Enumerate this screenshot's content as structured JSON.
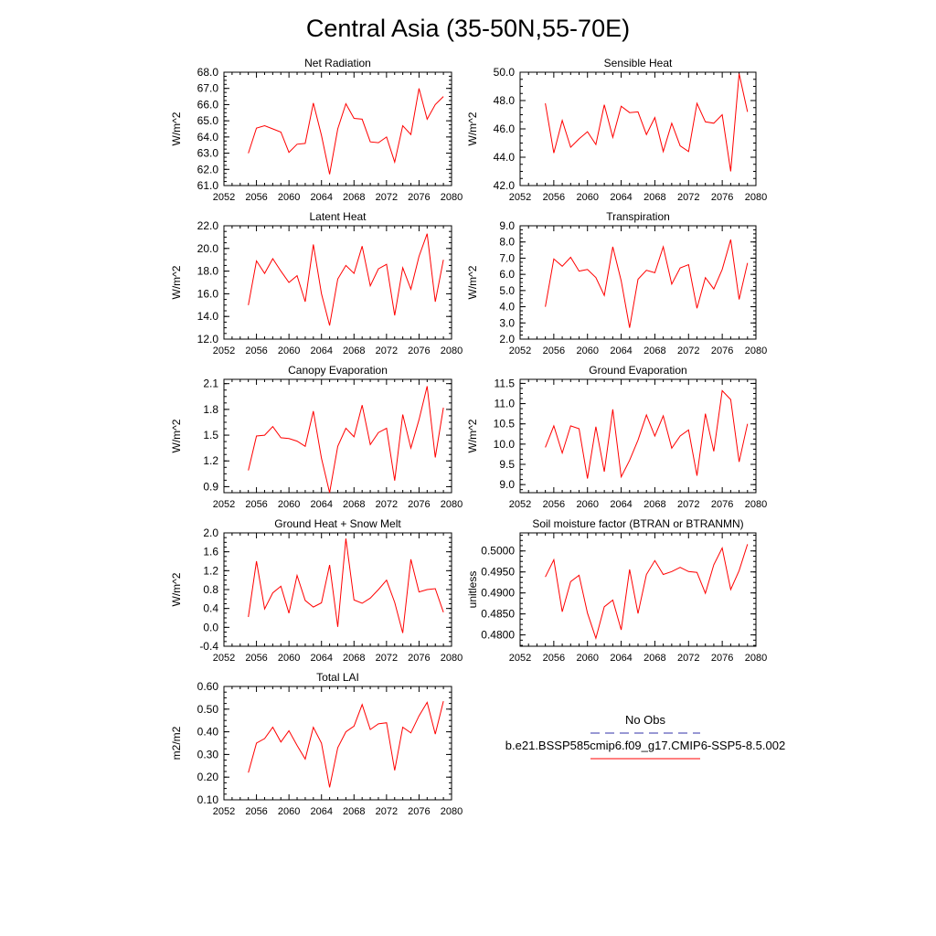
{
  "figure": {
    "title": "Central Asia (35-50N,55-70E)"
  },
  "legend": {
    "obs_label": "No Obs",
    "model_label": "b.e21.BSSP585cmip6.f09_g17.CMIP6-SSP5-8.5.002",
    "obs_color": "#3333aa",
    "model_color": "#ff0000"
  },
  "chart_data": [
    {
      "type": "line",
      "title": "Net Radiation",
      "ylabel": "W/m^2",
      "xlim": [
        2052,
        2080
      ],
      "ylim": [
        61.0,
        68.0
      ],
      "xticks": [
        "2052",
        "2056",
        "2060",
        "2064",
        "2068",
        "2072",
        "2076",
        "2080"
      ],
      "yticks": [
        "61.0",
        "62.0",
        "63.0",
        "64.0",
        "65.0",
        "66.0",
        "67.0",
        "68.0"
      ],
      "ytick_values": [
        61,
        62,
        63,
        64,
        65,
        66,
        67,
        68
      ],
      "series": [
        {
          "name": "b.e21.BSSP585cmip6.f09_g17.CMIP6-SSP5-8.5.002",
          "color": "#ff0000",
          "x": [
            2055,
            2056,
            2057,
            2058,
            2059,
            2060,
            2061,
            2062,
            2063,
            2064,
            2065,
            2066,
            2067,
            2068,
            2069,
            2070,
            2071,
            2072,
            2073,
            2074,
            2075,
            2076,
            2077,
            2078,
            2079
          ],
          "y": [
            63.0,
            64.55,
            64.7,
            64.5,
            64.3,
            63.05,
            63.55,
            63.6,
            66.1,
            64.1,
            61.7,
            64.5,
            66.05,
            65.15,
            65.1,
            63.7,
            63.65,
            64.0,
            62.45,
            64.7,
            64.15,
            67.0,
            65.1,
            66.0,
            66.5
          ]
        }
      ]
    },
    {
      "type": "line",
      "title": "Sensible Heat",
      "ylabel": "W/m^2",
      "xlim": [
        2052,
        2080
      ],
      "ylim": [
        42.0,
        50.0
      ],
      "xticks": [
        "2052",
        "2056",
        "2060",
        "2064",
        "2068",
        "2072",
        "2076",
        "2080"
      ],
      "yticks": [
        "42.0",
        "44.0",
        "46.0",
        "48.0",
        "50.0"
      ],
      "ytick_values": [
        42,
        44,
        46,
        48,
        50
      ],
      "series": [
        {
          "name": "b.e21.BSSP585cmip6.f09_g17.CMIP6-SSP5-8.5.002",
          "color": "#ff0000",
          "x": [
            2055,
            2056,
            2057,
            2058,
            2059,
            2060,
            2061,
            2062,
            2063,
            2064,
            2065,
            2066,
            2067,
            2068,
            2069,
            2070,
            2071,
            2072,
            2073,
            2074,
            2075,
            2076,
            2077,
            2078,
            2079
          ],
          "y": [
            47.8,
            44.3,
            46.6,
            44.7,
            45.3,
            45.8,
            44.9,
            47.7,
            45.4,
            47.6,
            47.15,
            47.2,
            45.6,
            46.8,
            44.4,
            46.4,
            44.8,
            44.4,
            47.8,
            46.5,
            46.4,
            47.0,
            43.0,
            49.9,
            47.2
          ]
        }
      ]
    },
    {
      "type": "line",
      "title": "Latent Heat",
      "ylabel": "W/m^2",
      "xlim": [
        2052,
        2080
      ],
      "ylim": [
        12.0,
        22.0
      ],
      "xticks": [
        "2052",
        "2056",
        "2060",
        "2064",
        "2068",
        "2072",
        "2076",
        "2080"
      ],
      "yticks": [
        "12.0",
        "14.0",
        "16.0",
        "18.0",
        "20.0",
        "22.0"
      ],
      "ytick_values": [
        12,
        14,
        16,
        18,
        20,
        22
      ],
      "series": [
        {
          "name": "b.e21.BSSP585cmip6.f09_g17.CMIP6-SSP5-8.5.002",
          "color": "#ff0000",
          "x": [
            2055,
            2056,
            2057,
            2058,
            2059,
            2060,
            2061,
            2062,
            2063,
            2064,
            2065,
            2066,
            2067,
            2068,
            2069,
            2070,
            2071,
            2072,
            2073,
            2074,
            2075,
            2076,
            2077,
            2078,
            2079
          ],
          "y": [
            15.0,
            18.9,
            17.8,
            19.1,
            18.0,
            17.0,
            17.6,
            15.3,
            20.35,
            16.0,
            13.2,
            17.3,
            18.5,
            17.8,
            20.2,
            16.7,
            18.2,
            18.6,
            14.1,
            18.3,
            16.4,
            19.3,
            21.3,
            15.3,
            19.0
          ]
        }
      ]
    },
    {
      "type": "line",
      "title": "Transpiration",
      "ylabel": "W/m^2",
      "xlim": [
        2052,
        2080
      ],
      "ylim": [
        2.0,
        9.0
      ],
      "xticks": [
        "2052",
        "2056",
        "2060",
        "2064",
        "2068",
        "2072",
        "2076",
        "2080"
      ],
      "yticks": [
        "2.0",
        "3.0",
        "4.0",
        "5.0",
        "6.0",
        "7.0",
        "8.0",
        "9.0"
      ],
      "ytick_values": [
        2,
        3,
        4,
        5,
        6,
        7,
        8,
        9
      ],
      "series": [
        {
          "name": "b.e21.BSSP585cmip6.f09_g17.CMIP6-SSP5-8.5.002",
          "color": "#ff0000",
          "x": [
            2055,
            2056,
            2057,
            2058,
            2059,
            2060,
            2061,
            2062,
            2063,
            2064,
            2065,
            2066,
            2067,
            2068,
            2069,
            2070,
            2071,
            2072,
            2073,
            2074,
            2075,
            2076,
            2077,
            2078,
            2079
          ],
          "y": [
            4.0,
            6.95,
            6.5,
            7.05,
            6.2,
            6.3,
            5.8,
            4.7,
            7.7,
            5.6,
            2.7,
            5.7,
            6.25,
            6.1,
            7.7,
            5.4,
            6.4,
            6.6,
            3.9,
            5.8,
            5.1,
            6.3,
            8.15,
            4.45,
            6.7
          ]
        }
      ]
    },
    {
      "type": "line",
      "title": "Canopy Evaporation",
      "ylabel": "W/m^2",
      "xlim": [
        2052,
        2080
      ],
      "ylim": [
        0.83,
        2.15
      ],
      "xticks": [
        "2052",
        "2056",
        "2060",
        "2064",
        "2068",
        "2072",
        "2076",
        "2080"
      ],
      "yticks": [
        "0.9",
        "1.2",
        "1.5",
        "1.8",
        "2.1"
      ],
      "ytick_values": [
        0.9,
        1.2,
        1.5,
        1.8,
        2.1
      ],
      "series": [
        {
          "name": "b.e21.BSSP585cmip6.f09_g17.CMIP6-SSP5-8.5.002",
          "color": "#ff0000",
          "x": [
            2055,
            2056,
            2057,
            2058,
            2059,
            2060,
            2061,
            2062,
            2063,
            2064,
            2065,
            2066,
            2067,
            2068,
            2069,
            2070,
            2071,
            2072,
            2073,
            2074,
            2075,
            2076,
            2077,
            2078,
            2079
          ],
          "y": [
            1.09,
            1.49,
            1.5,
            1.6,
            1.47,
            1.46,
            1.43,
            1.37,
            1.78,
            1.23,
            0.83,
            1.37,
            1.58,
            1.48,
            1.85,
            1.39,
            1.53,
            1.58,
            0.97,
            1.74,
            1.35,
            1.68,
            2.07,
            1.24,
            1.82
          ]
        }
      ]
    },
    {
      "type": "line",
      "title": "Ground Evaporation",
      "ylabel": "W/m^2",
      "xlim": [
        2052,
        2080
      ],
      "ylim": [
        8.8,
        11.6
      ],
      "xticks": [
        "2052",
        "2056",
        "2060",
        "2064",
        "2068",
        "2072",
        "2076",
        "2080"
      ],
      "yticks": [
        "9.0",
        "9.5",
        "10.0",
        "10.5",
        "11.0",
        "11.5"
      ],
      "ytick_values": [
        9.0,
        9.5,
        10.0,
        10.5,
        11.0,
        11.5
      ],
      "series": [
        {
          "name": "b.e21.BSSP585cmip6.f09_g17.CMIP6-SSP5-8.5.002",
          "color": "#ff0000",
          "x": [
            2055,
            2056,
            2057,
            2058,
            2059,
            2060,
            2061,
            2062,
            2063,
            2064,
            2065,
            2066,
            2067,
            2068,
            2069,
            2070,
            2071,
            2072,
            2073,
            2074,
            2075,
            2076,
            2077,
            2078,
            2079
          ],
          "y": [
            9.92,
            10.45,
            9.78,
            10.45,
            10.38,
            9.15,
            10.43,
            9.32,
            10.86,
            9.19,
            9.6,
            10.1,
            10.72,
            10.2,
            10.7,
            9.9,
            10.2,
            10.35,
            9.22,
            10.75,
            9.82,
            11.32,
            11.1,
            9.56,
            10.5
          ]
        }
      ]
    },
    {
      "type": "line",
      "title": "Ground Heat + Snow Melt",
      "ylabel": "W/m^2",
      "xlim": [
        2052,
        2080
      ],
      "ylim": [
        -0.4,
        2.0
      ],
      "xticks": [
        "2052",
        "2056",
        "2060",
        "2064",
        "2068",
        "2072",
        "2076",
        "2080"
      ],
      "yticks": [
        "-0.4",
        "0.0",
        "0.4",
        "0.8",
        "1.2",
        "1.6",
        "2.0"
      ],
      "ytick_values": [
        -0.4,
        0.0,
        0.4,
        0.8,
        1.2,
        1.6,
        2.0
      ],
      "series": [
        {
          "name": "b.e21.BSSP585cmip6.f09_g17.CMIP6-SSP5-8.5.002",
          "color": "#ff0000",
          "x": [
            2055,
            2056,
            2057,
            2058,
            2059,
            2060,
            2061,
            2062,
            2063,
            2064,
            2065,
            2066,
            2067,
            2068,
            2069,
            2070,
            2071,
            2072,
            2073,
            2074,
            2075,
            2076,
            2077,
            2078,
            2079
          ],
          "y": [
            0.22,
            1.4,
            0.39,
            0.73,
            0.87,
            0.3,
            1.1,
            0.57,
            0.43,
            0.52,
            1.32,
            0.01,
            1.88,
            0.58,
            0.51,
            0.62,
            0.8,
            1.0,
            0.53,
            -0.12,
            1.44,
            0.75,
            0.8,
            0.82,
            0.32
          ]
        }
      ]
    },
    {
      "type": "line",
      "title": "Soil moisture factor (BTRAN or BTRANMN)",
      "ylabel": "unitless",
      "xlim": [
        2052,
        2080
      ],
      "ylim": [
        0.4773,
        0.5043
      ],
      "xticks": [
        "2052",
        "2056",
        "2060",
        "2064",
        "2068",
        "2072",
        "2076",
        "2080"
      ],
      "yticks": [
        "0.4800",
        "0.4850",
        "0.4900",
        "0.4950",
        "0.5000"
      ],
      "ytick_values": [
        0.48,
        0.485,
        0.49,
        0.495,
        0.5
      ],
      "series": [
        {
          "name": "b.e21.BSSP585cmip6.f09_g17.CMIP6-SSP5-8.5.002",
          "color": "#ff0000",
          "x": [
            2055,
            2056,
            2057,
            2058,
            2059,
            2060,
            2061,
            2062,
            2063,
            2064,
            2065,
            2066,
            2067,
            2068,
            2069,
            2070,
            2071,
            2072,
            2073,
            2074,
            2075,
            2076,
            2077,
            2078,
            2079
          ],
          "y": [
            0.4938,
            0.4979,
            0.4855,
            0.4927,
            0.4942,
            0.4852,
            0.4792,
            0.4867,
            0.4883,
            0.4812,
            0.4956,
            0.4851,
            0.4944,
            0.4977,
            0.4944,
            0.4951,
            0.4961,
            0.4951,
            0.4949,
            0.4899,
            0.4967,
            0.5007,
            0.4908,
            0.4953,
            0.5016
          ]
        }
      ]
    },
    {
      "type": "line",
      "title": "Total LAI",
      "ylabel": "m2/m2",
      "xlim": [
        2052,
        2080
      ],
      "ylim": [
        0.1,
        0.6
      ],
      "xticks": [
        "2052",
        "2056",
        "2060",
        "2064",
        "2068",
        "2072",
        "2076",
        "2080"
      ],
      "yticks": [
        "0.10",
        "0.20",
        "0.30",
        "0.40",
        "0.50",
        "0.60"
      ],
      "ytick_values": [
        0.1,
        0.2,
        0.3,
        0.4,
        0.5,
        0.6
      ],
      "series": [
        {
          "name": "b.e21.BSSP585cmip6.f09_g17.CMIP6-SSP5-8.5.002",
          "color": "#ff0000",
          "x": [
            2055,
            2056,
            2057,
            2058,
            2059,
            2060,
            2061,
            2062,
            2063,
            2064,
            2065,
            2066,
            2067,
            2068,
            2069,
            2070,
            2071,
            2072,
            2073,
            2074,
            2075,
            2076,
            2077,
            2078,
            2079
          ],
          "y": [
            0.22,
            0.35,
            0.37,
            0.42,
            0.355,
            0.405,
            0.34,
            0.28,
            0.42,
            0.35,
            0.155,
            0.33,
            0.4,
            0.425,
            0.52,
            0.41,
            0.435,
            0.44,
            0.23,
            0.42,
            0.395,
            0.47,
            0.53,
            0.39,
            0.535
          ]
        }
      ]
    }
  ]
}
